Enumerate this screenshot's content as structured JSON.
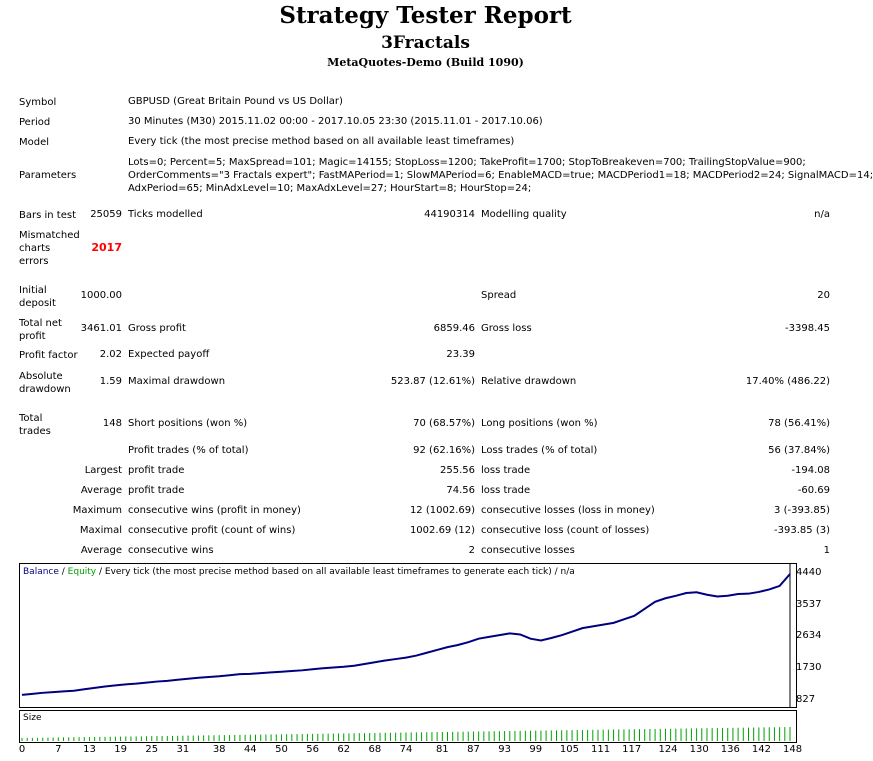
{
  "header": {
    "title": "Strategy Tester Report",
    "subtitle": "3Fractals",
    "build": "MetaQuotes-Demo (Build 1090)"
  },
  "info": {
    "symbol_label": "Symbol",
    "symbol_value": "GBPUSD (Great Britain Pound vs US Dollar)",
    "period_label": "Period",
    "period_value": "30 Minutes (M30) 2015.11.02 00:00 - 2017.10.05 23:30 (2015.11.01 - 2017.10.06)",
    "model_label": "Model",
    "model_value": "Every tick (the most precise method based on all available least timeframes)",
    "parameters_label": "Parameters",
    "parameters_lines": [
      "Lots=0; Percent=5; MaxSpread=101; Magic=14155; StopLoss=1200; TakeProfit=1700; StopToBreakeven=700; TrailingStopValue=900;",
      "OrderComments=\"3 Fractals expert\"; FastMAPeriod=1; SlowMAPeriod=6; EnableMACD=true; MACDPeriod1=18; MACDPeriod2=24; SignalMACD=14;",
      "AdxPeriod=65; MinAdxLevel=10; MaxAdxLevel=27; HourStart=8; HourStop=24;"
    ]
  },
  "stats": {
    "bars_label": "Bars in test",
    "bars_value": "25059",
    "ticks_label": "Ticks modelled",
    "ticks_value": "44190314",
    "quality_label": "Modelling quality",
    "quality_value": "n/a",
    "mismatch_label_1": "Mismatched",
    "mismatch_label_2": "charts",
    "mismatch_label_3": "errors",
    "mismatch_value": "2017",
    "deposit_label_1": "Initial",
    "deposit_label_2": "deposit",
    "deposit_value": "1000.00",
    "spread_label": "Spread",
    "spread_value": "20",
    "netprofit_label_1": "Total net",
    "netprofit_label_2": "profit",
    "netprofit_value": "3461.01",
    "grossprofit_label": "Gross profit",
    "grossprofit_value": "6859.46",
    "grossloss_label": "Gross loss",
    "grossloss_value": "-3398.45",
    "pf_label": "Profit factor",
    "pf_value": "2.02",
    "payoff_label": "Expected payoff",
    "payoff_value": "23.39",
    "absdd_label_1": "Absolute",
    "absdd_label_2": "drawdown",
    "absdd_value": "1.59",
    "maxdd_label": "Maximal drawdown",
    "maxdd_value": "523.87 (12.61%)",
    "reldd_label": "Relative drawdown",
    "reldd_value": "17.40% (486.22)",
    "trades_label_1": "Total",
    "trades_label_2": "trades",
    "trades_value": "148",
    "short_label": "Short positions (won %)",
    "short_value": "70 (68.57%)",
    "long_label": "Long positions (won %)",
    "long_value": "78 (56.41%)",
    "profittrades_label": "Profit trades (% of total)",
    "profittrades_value": "92 (62.16%)",
    "losstrades_label": "Loss trades (% of total)",
    "losstrades_value": "56 (37.84%)",
    "largest_label": "Largest",
    "largest_profit_label": "profit trade",
    "largest_profit_value": "255.56",
    "largest_loss_label": "loss trade",
    "largest_loss_value": "-194.08",
    "average_label": "Average",
    "average_profit_label": "profit trade",
    "average_profit_value": "74.56",
    "average_loss_label": "loss trade",
    "average_loss_value": "-60.69",
    "maximum_label": "Maximum",
    "max_wins_label": "consecutive wins (profit in money)",
    "max_wins_value": "12 (1002.69)",
    "max_losses_label": "consecutive losses (loss in money)",
    "max_losses_value": "3 (-393.85)",
    "maximal_label": "Maximal",
    "maximal_profit_label": "consecutive profit (count of wins)",
    "maximal_profit_value": "1002.69 (12)",
    "maximal_loss_label": "consecutive loss (count of losses)",
    "maximal_loss_value": "-393.85 (3)",
    "avg2_label": "Average",
    "avg_wins_label": "consecutive wins",
    "avg_wins_value": "2",
    "avg_losses_label": "consecutive losses",
    "avg_losses_value": "1"
  },
  "chart_legend": {
    "balance": "Balance",
    "sep1": " / ",
    "equity": "Equity",
    "rest": " / Every tick (the most precise method based on all available least timeframes to generate each tick) / n/a",
    "balance_color": "#000080",
    "equity_color": "#00a000"
  },
  "size_label": "Size",
  "chart_data": {
    "type": "line",
    "series": [
      {
        "name": "Balance",
        "x": [
          0,
          2,
          4,
          6,
          8,
          10,
          12,
          14,
          16,
          18,
          20,
          22,
          24,
          26,
          28,
          30,
          32,
          34,
          36,
          38,
          40,
          42,
          44,
          46,
          48,
          50,
          52,
          54,
          56,
          58,
          60,
          62,
          64,
          66,
          68,
          70,
          72,
          74,
          76,
          78,
          80,
          82,
          84,
          86,
          88,
          90,
          92,
          94,
          96,
          98,
          100,
          102,
          104,
          106,
          108,
          110,
          112,
          114,
          116,
          118,
          120,
          122,
          124,
          126,
          128,
          130,
          132,
          134,
          136,
          138,
          140,
          142,
          144,
          146,
          148
        ],
        "values": [
          1000,
          1030,
          1060,
          1080,
          1100,
          1120,
          1160,
          1200,
          1240,
          1270,
          1300,
          1320,
          1350,
          1380,
          1400,
          1430,
          1460,
          1490,
          1510,
          1530,
          1560,
          1590,
          1600,
          1620,
          1640,
          1660,
          1680,
          1700,
          1730,
          1760,
          1780,
          1800,
          1830,
          1880,
          1930,
          1980,
          2020,
          2060,
          2120,
          2200,
          2280,
          2360,
          2420,
          2500,
          2600,
          2650,
          2700,
          2750,
          2720,
          2600,
          2550,
          2620,
          2700,
          2800,
          2900,
          2950,
          3000,
          3050,
          3150,
          3250,
          3450,
          3650,
          3750,
          3820,
          3900,
          3920,
          3850,
          3800,
          3820,
          3870,
          3880,
          3930,
          4000,
          4100,
          4440
        ]
      }
    ],
    "y_ticks": [
      4440,
      3537,
      2634,
      1730,
      827
    ],
    "x_ticks": [
      0,
      7,
      13,
      19,
      25,
      31,
      38,
      44,
      50,
      56,
      62,
      68,
      74,
      81,
      87,
      93,
      99,
      105,
      111,
      117,
      124,
      130,
      136,
      142,
      148
    ],
    "ylim": [
      827,
      4440
    ],
    "xlim": [
      0,
      148
    ]
  }
}
